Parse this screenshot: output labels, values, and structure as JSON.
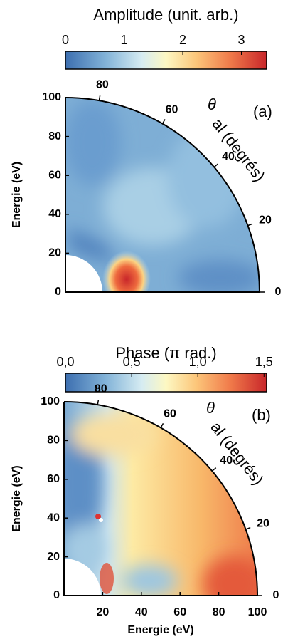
{
  "chart_data": [
    {
      "type": "polar-heatmap",
      "colorbar_title": "Amplitude (unit. arb.)",
      "clim": [
        0,
        3.43
      ],
      "cticks": [
        0,
        1,
        2,
        3
      ],
      "panel_label": "(a)",
      "ylabel": "Energie (eV)",
      "ylim": [
        0,
        100
      ],
      "yticks": [
        0,
        20,
        40,
        60,
        80,
        100
      ],
      "theta_lim": [
        0,
        90
      ],
      "theta_ticks": [
        80,
        60,
        40,
        20,
        0
      ],
      "theta_symbol": "θ",
      "theta_label": "al (degrés)"
    },
    {
      "type": "polar-heatmap",
      "colorbar_title": "Phase (π rad.)",
      "clim": [
        0,
        1.52
      ],
      "cticks": [
        {
          "value": 0,
          "label": "0,0"
        },
        {
          "value": 0.5,
          "label": "0,5"
        },
        {
          "value": 1,
          "label": "1,0"
        },
        {
          "value": 1.5,
          "label": "1,5"
        }
      ],
      "panel_label": "(b)",
      "ylabel": "Energie (eV)",
      "xlabel": "Energie (eV)",
      "ylim": [
        0,
        100
      ],
      "yticks": [
        0,
        20,
        40,
        60,
        80,
        100
      ],
      "xlim": [
        0,
        100
      ],
      "xticks": [
        20,
        40,
        60,
        80,
        100
      ],
      "theta_lim": [
        0,
        90
      ],
      "theta_ticks": [
        80,
        60,
        40,
        20,
        0
      ],
      "theta_symbol": "θ",
      "theta_label": "al (degrés)"
    }
  ]
}
